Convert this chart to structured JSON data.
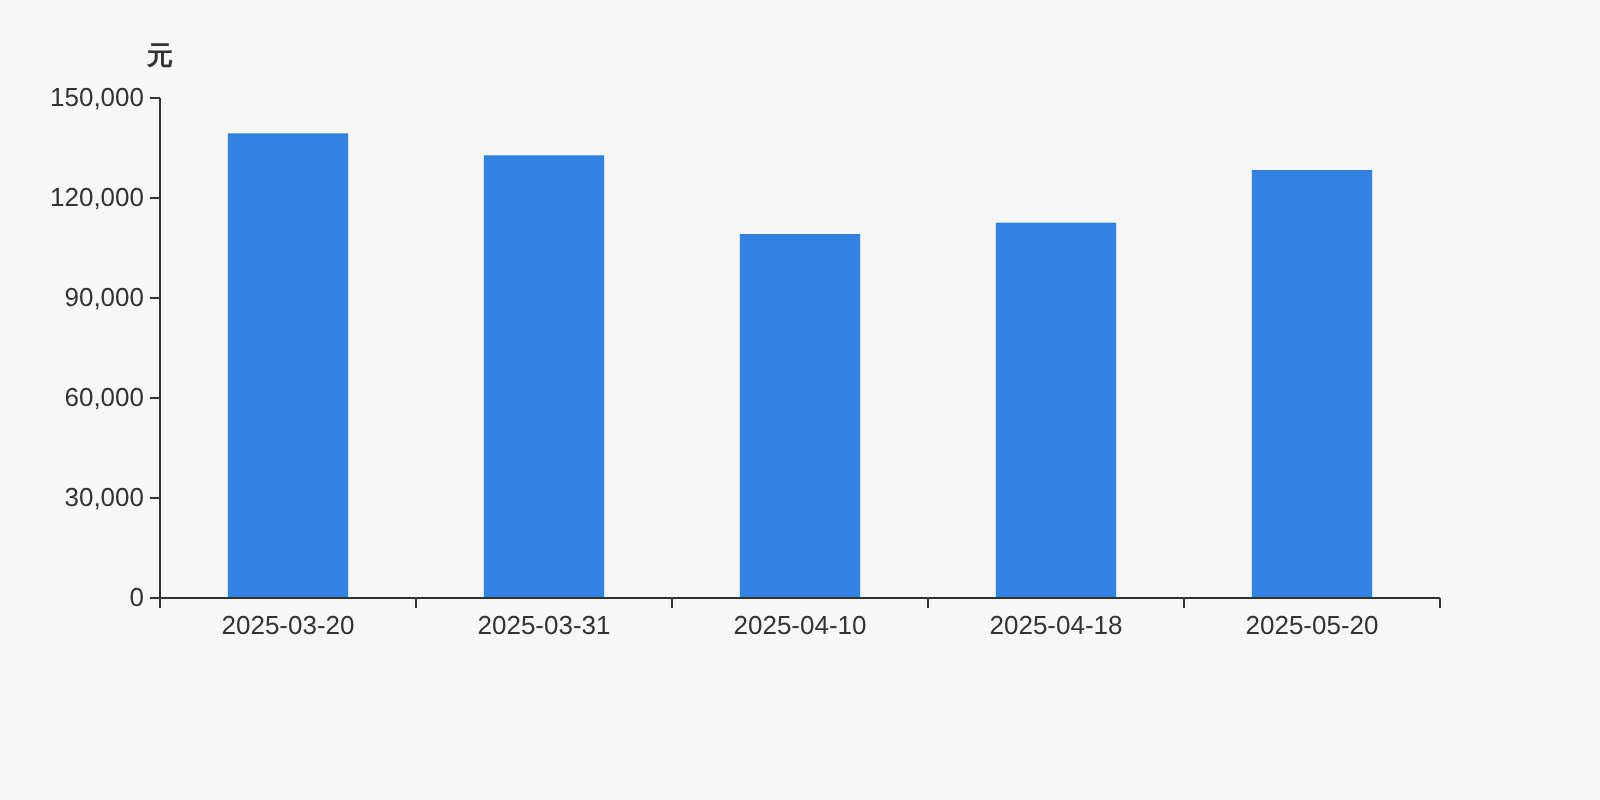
{
  "chart_data": {
    "type": "bar",
    "ylabel": "元",
    "categories": [
      "2025-03-20",
      "2025-03-31",
      "2025-04-10",
      "2025-04-18",
      "2025-05-20"
    ],
    "values": [
      139400,
      132800,
      109200,
      112600,
      128400
    ],
    "color": "#3382e2",
    "ylim": [
      0,
      150000
    ],
    "yticks": [
      {
        "value": 0,
        "label": "0"
      },
      {
        "value": 30000,
        "label": "30,000"
      },
      {
        "value": 60000,
        "label": "60,000"
      },
      {
        "value": 90000,
        "label": "90,000"
      },
      {
        "value": 120000,
        "label": "120,000"
      },
      {
        "value": 150000,
        "label": "150,000"
      }
    ],
    "grid": false
  }
}
